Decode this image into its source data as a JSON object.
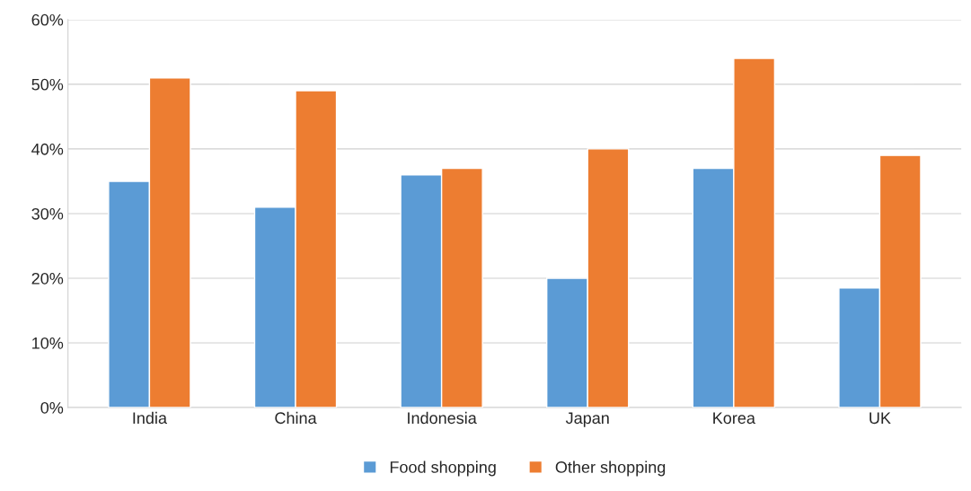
{
  "chart_data": {
    "type": "bar",
    "categories": [
      "India",
      "China",
      "Indonesia",
      "Japan",
      "Korea",
      "UK"
    ],
    "series": [
      {
        "name": "Food shopping",
        "color": "#5b9bd5",
        "values": [
          35,
          31,
          36,
          20,
          37,
          18.5
        ]
      },
      {
        "name": "Other shopping",
        "color": "#ed7d31",
        "values": [
          51,
          49,
          37,
          40,
          54,
          39
        ]
      }
    ],
    "ylim": [
      0,
      60
    ],
    "yticks": [
      {
        "value": 0,
        "label": "0%"
      },
      {
        "value": 10,
        "label": "10%"
      },
      {
        "value": 20,
        "label": "20%"
      },
      {
        "value": 30,
        "label": "30%"
      },
      {
        "value": 40,
        "label": "40%"
      },
      {
        "value": 50,
        "label": "50%"
      },
      {
        "value": 60,
        "label": "60%"
      }
    ],
    "grid": "y",
    "legend": "bottom"
  }
}
